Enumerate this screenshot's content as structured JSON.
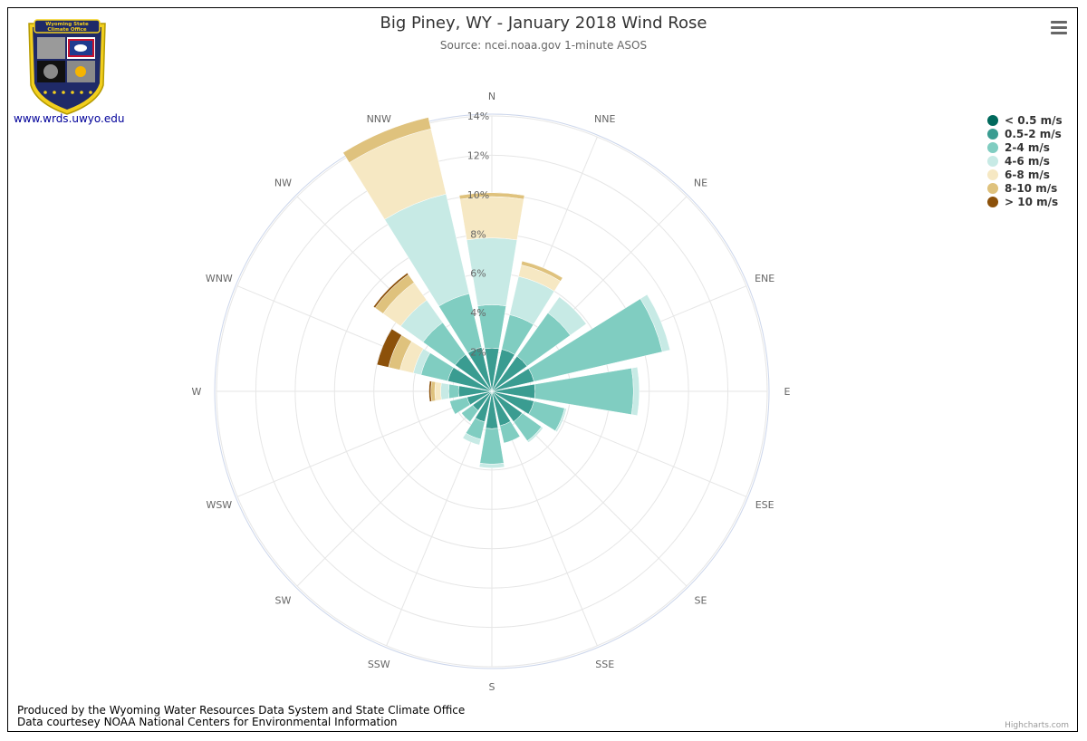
{
  "header": {
    "title": "Big Piney, WY - January 2018 Wind Rose",
    "subtitle": "Source: ncei.noaa.gov 1-minute ASOS"
  },
  "logo": {
    "text_line1": "Wyoming State",
    "text_line2": "Climate Office",
    "link_text": "www.wrds.uwyo.edu"
  },
  "footer": {
    "line1": "Produced by the Wyoming Water Resources Data System and State Climate Office",
    "line2": "Data courtesey NOAA National Centers for Environmental Information",
    "credits": "Highcharts.com"
  },
  "menu": {
    "icon": "hamburger-menu-icon"
  },
  "chart_data": {
    "type": "windrose",
    "title": "Big Piney, WY - January 2018 Wind Rose",
    "subtitle": "Source: ncei.noaa.gov 1-minute ASOS",
    "directions": [
      "N",
      "NNE",
      "NE",
      "ENE",
      "E",
      "ESE",
      "SE",
      "SSE",
      "S",
      "SSW",
      "SW",
      "WSW",
      "W",
      "WNW",
      "NW",
      "NNW"
    ],
    "radial_ticks": [
      "2%",
      "4%",
      "6%",
      "8%",
      "10%",
      "12%",
      "14%"
    ],
    "radial_max": 14,
    "stacking": "cumulative",
    "legend_position": "top-right",
    "series": [
      {
        "name": "< 0.5 m/s",
        "color": "#00695c",
        "values": [
          0,
          0,
          0,
          0,
          0,
          0,
          0,
          0,
          0,
          0,
          0,
          0,
          0,
          0,
          0,
          0
        ]
      },
      {
        "name": "0.5-2 m/s",
        "color": "#3a9c91",
        "values": [
          2.2,
          2.2,
          2.2,
          2.2,
          2.2,
          2.2,
          1.9,
          1.8,
          1.9,
          1.6,
          1.2,
          1.3,
          1.7,
          2.3,
          2.3,
          2.3
        ]
      },
      {
        "name": "2-4 m/s",
        "color": "#80cdc1",
        "values": [
          2.2,
          1.8,
          2.7,
          6.7,
          5.0,
          1.6,
          1.2,
          0.9,
          1.8,
          0.9,
          0.7,
          0.9,
          0.5,
          1.4,
          2.0,
          2.8
        ]
      },
      {
        "name": "4-6 m/s",
        "color": "#c7eae5",
        "values": [
          3.4,
          2.0,
          1.0,
          0.4,
          0.3,
          0.1,
          0.1,
          0.0,
          0.2,
          0.3,
          0.0,
          0.0,
          0.4,
          0.4,
          1.4,
          5.2
        ]
      },
      {
        "name": "6-8 m/s",
        "color": "#f6e8c3",
        "values": [
          2.1,
          0.6,
          0.0,
          0.0,
          0.0,
          0.0,
          0.0,
          0.0,
          0.0,
          0.0,
          0.0,
          0.0,
          0.3,
          0.7,
          1.1,
          3.4
        ]
      },
      {
        "name": "8-10 m/s",
        "color": "#dfc27d",
        "values": [
          0.2,
          0.2,
          0.0,
          0.0,
          0.0,
          0.0,
          0.0,
          0.0,
          0.0,
          0.0,
          0.0,
          0.0,
          0.2,
          0.6,
          0.5,
          0.6
        ]
      },
      {
        "name": "> 10 m/s",
        "color": "#8c510a",
        "values": [
          0.0,
          0.0,
          0.0,
          0.0,
          0.0,
          0.0,
          0.0,
          0.0,
          0.0,
          0.0,
          0.0,
          0.0,
          0.1,
          0.6,
          0.1,
          0.0
        ]
      }
    ]
  }
}
